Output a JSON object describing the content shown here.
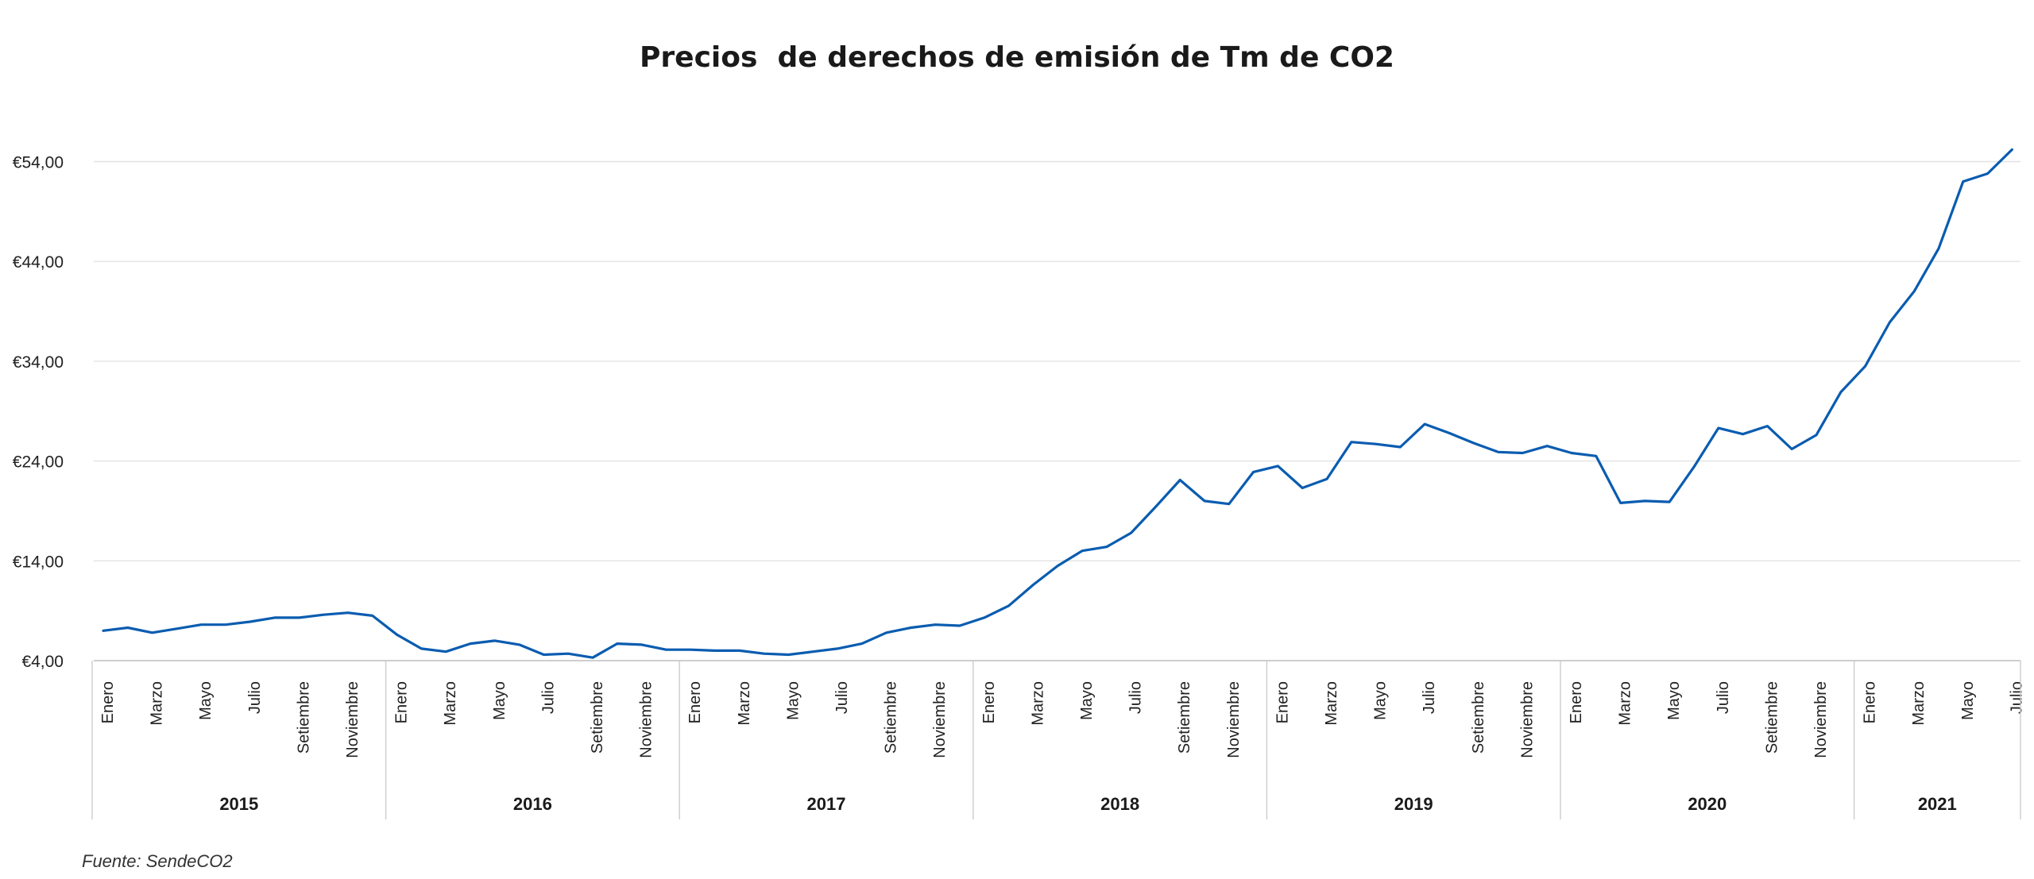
{
  "chart_data": {
    "type": "line",
    "title": "Precios  de derechos de emisión de Tm de CO2",
    "source": "Fuente: SendeCO2",
    "xlabel": "",
    "ylabel": "",
    "ylim": [
      4,
      55
    ],
    "y_ticks": [
      4,
      14,
      24,
      34,
      44,
      54
    ],
    "y_tick_labels": [
      "€4,00",
      "€14,00",
      "€24,00",
      "€34,00",
      "€44,00",
      "€54,00"
    ],
    "grid": true,
    "line_color": "#0a5cb0",
    "x_group_labels": [
      "2015",
      "2016",
      "2017",
      "2018",
      "2019",
      "2020",
      "2021"
    ],
    "x_month_labels": [
      "Enero",
      "Marzo",
      "Mayo",
      "Julio",
      "Setiembre",
      "Noviembre"
    ],
    "x_month_labels_last_group": [
      "Enero",
      "Marzo",
      "Mayo",
      "Julio"
    ],
    "series": [
      {
        "values": [
          7.0,
          7.3,
          6.8,
          7.2,
          7.6,
          7.6,
          7.9,
          8.3,
          8.3,
          8.6,
          8.8,
          8.5,
          6.6,
          5.2,
          4.9,
          5.7,
          6.0,
          5.6,
          4.6,
          4.7,
          4.3,
          5.7,
          5.6,
          5.1,
          5.1,
          5.0,
          5.0,
          4.7,
          4.6,
          4.9,
          5.2,
          5.7,
          6.8,
          7.3,
          7.6,
          7.5,
          8.3,
          9.5,
          11.6,
          13.5,
          15.0,
          15.4,
          16.8,
          19.4,
          22.1,
          20.0,
          19.7,
          22.9,
          23.5,
          21.3,
          22.2,
          25.9,
          25.7,
          25.4,
          27.7,
          26.8,
          25.8,
          24.9,
          24.8,
          25.5,
          24.8,
          24.5,
          19.8,
          20.0,
          19.9,
          23.4,
          27.3,
          26.7,
          27.5,
          25.2,
          26.6,
          30.9,
          33.5,
          37.9,
          41.0,
          45.3,
          52.0,
          52.8,
          55.2
        ]
      }
    ]
  }
}
